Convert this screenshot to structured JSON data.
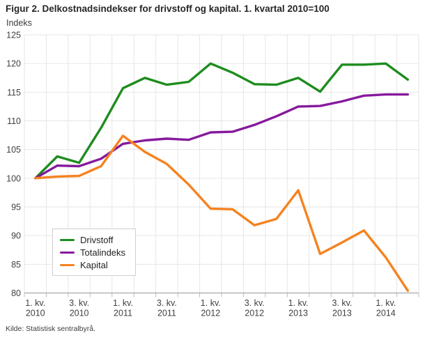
{
  "title": "Figur 2. Delkostnadsindekser for drivstoff og kapital. 1. kvartal 2010=100",
  "y_axis_title": "Indeks",
  "source": "Kilde: Statistisk sentralbyrå.",
  "colors": {
    "drivstoff_green": "#1e8c1e",
    "totalindeks_purple": "#861a9d",
    "kapital_orange": "#f5821f",
    "gridline": "#e6e6e6",
    "axis_line": "#b3b3b3",
    "tick_mark": "#bdbdbd",
    "tick_label": "#404040",
    "title_text": "#262626"
  },
  "chart_data": {
    "type": "line",
    "title": "Figur 2. Delkostnadsindekser for drivstoff og kapital. 1. kvartal 2010=100",
    "xlabel": "",
    "ylabel": "Indeks",
    "ylim": [
      80,
      125
    ],
    "ytick_step": 5,
    "yticks": [
      80,
      85,
      90,
      95,
      100,
      105,
      110,
      115,
      120,
      125
    ],
    "grid": true,
    "legend_position": "lower-left",
    "x_tick_every": 2,
    "categories": [
      "1. kv. 2010",
      "2. kv. 2010",
      "3. kv. 2010",
      "4. kv. 2010",
      "1. kv. 2011",
      "2. kv. 2011",
      "3. kv. 2011",
      "4. kv. 2011",
      "1. kv. 2012",
      "2. kv. 2012",
      "3. kv. 2012",
      "4. kv. 2012",
      "1. kv. 2013",
      "2. kv. 2013",
      "3. kv. 2013",
      "4. kv. 2013",
      "1. kv. 2014",
      "2. kv. 2014"
    ],
    "shown_x_labels": [
      [
        "1. kv.",
        "2010"
      ],
      [
        "3. kv.",
        "2010"
      ],
      [
        "1. kv.",
        "2011"
      ],
      [
        "3. kv.",
        "2011"
      ],
      [
        "1. kv.",
        "2012"
      ],
      [
        "3. kv.",
        "2012"
      ],
      [
        "1. kv.",
        "2013"
      ],
      [
        "3. kv.",
        "2013"
      ],
      [
        "1. kv.",
        "2014"
      ]
    ],
    "series": [
      {
        "name": "Drivstoff",
        "color": "#1e8c1e",
        "values": [
          100,
          103.8,
          102.7,
          108.8,
          115.7,
          117.5,
          116.3,
          116.8,
          120.0,
          118.4,
          116.4,
          116.3,
          117.5,
          115.1,
          119.8,
          119.8,
          120.0,
          117.2
        ]
      },
      {
        "name": "Totalindeks",
        "color": "#861a9d",
        "values": [
          100,
          102.2,
          102.1,
          103.4,
          106.0,
          106.6,
          106.9,
          106.7,
          108.0,
          108.1,
          109.3,
          110.8,
          112.5,
          112.6,
          113.4,
          114.4,
          114.6,
          114.6
        ]
      },
      {
        "name": "Kapital",
        "color": "#f5821f",
        "values": [
          100,
          100.3,
          100.4,
          102.1,
          107.4,
          104.6,
          102.5,
          98.9,
          94.7,
          94.6,
          91.8,
          92.9,
          97.9,
          86.8,
          88.8,
          90.9,
          86.2,
          80.4
        ]
      }
    ]
  }
}
